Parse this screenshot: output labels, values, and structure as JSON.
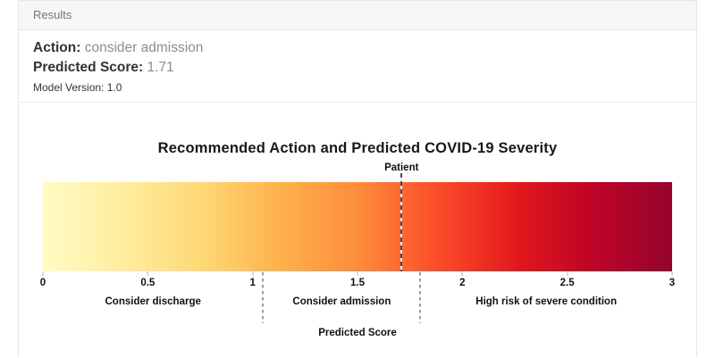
{
  "results_panel": {
    "header": "Results",
    "action": {
      "label": "Action:",
      "value": "consider admission"
    },
    "predicted_score": {
      "label": "Predicted Score:",
      "value": "1.71"
    },
    "model_version": {
      "label": "Model Version:",
      "value": "1.0"
    }
  },
  "chart_data": {
    "type": "heatmap",
    "subtype": "1d-severity-colorbar",
    "title": "Recommended Action and Predicted COVID-19 Severity",
    "xlabel": "Predicted Score",
    "xlim": [
      0,
      3
    ],
    "xticks": [
      0,
      0.5,
      1,
      1.5,
      2,
      2.5,
      3
    ],
    "patient_marker": {
      "label": "Patient",
      "value": 1.71
    },
    "zones": [
      {
        "label": "Consider discharge",
        "from": 0,
        "to": 1.05
      },
      {
        "label": "Consider admission",
        "from": 1.05,
        "to": 1.8
      },
      {
        "label": "High risk of severe condition",
        "from": 1.8,
        "to": 3
      }
    ],
    "gradient_stops": [
      {
        "color": "#FFFCC5",
        "pos": 0
      },
      {
        "color": "#FFEDA0",
        "pos": 12.5
      },
      {
        "color": "#FED976",
        "pos": 25
      },
      {
        "color": "#FEB24C",
        "pos": 37.5
      },
      {
        "color": "#FD8D3C",
        "pos": 50
      },
      {
        "color": "#FC4E2A",
        "pos": 62.5
      },
      {
        "color": "#E31A1C",
        "pos": 75
      },
      {
        "color": "#BE0426",
        "pos": 87.5
      },
      {
        "color": "#95042F",
        "pos": 100
      }
    ],
    "patient_line_color": "#4a4a4a",
    "boundary_line_color": "#9c9c9c"
  }
}
